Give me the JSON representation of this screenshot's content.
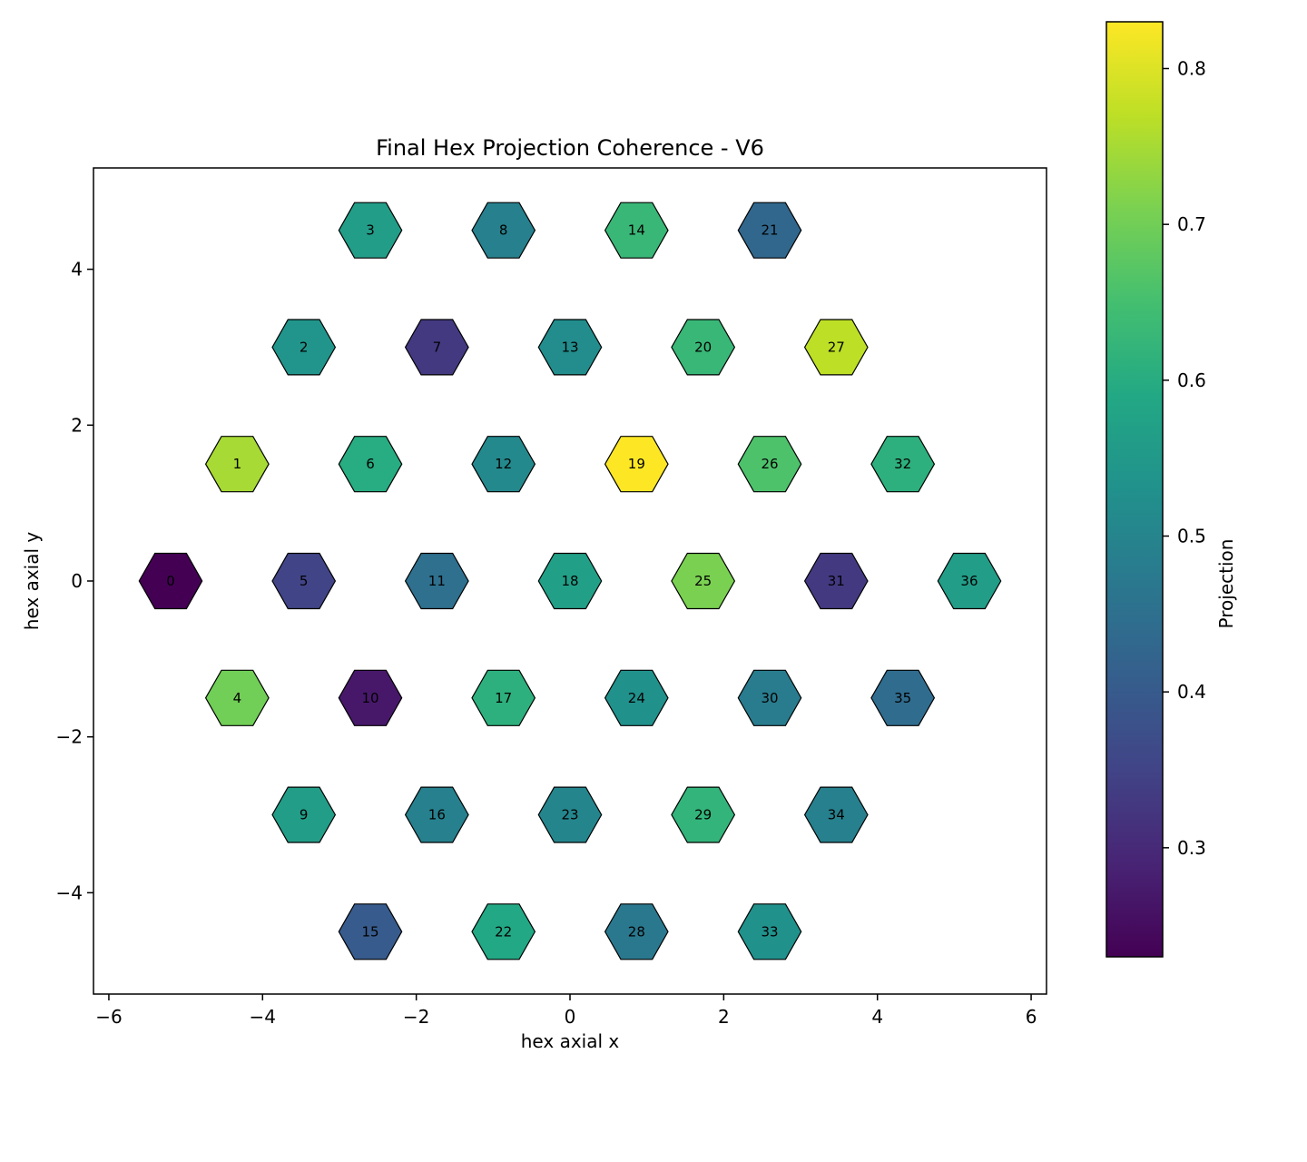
{
  "chart_data": {
    "type": "hexbin",
    "title": "Final Hex Projection Coherence - V6",
    "xlabel": "hex axial x",
    "ylabel": "hex axial y",
    "xlim": [
      -6.2,
      6.2
    ],
    "ylim": [
      -5.3,
      5.3
    ],
    "xticks": [
      -6,
      -4,
      -2,
      0,
      2,
      4,
      6
    ],
    "yticks": [
      -4,
      -2,
      0,
      2,
      4
    ],
    "grid": false,
    "colorbar": {
      "label": "Projection",
      "colormap": "viridis",
      "range": [
        0.23,
        0.83
      ],
      "ticks": [
        0.3,
        0.4,
        0.5,
        0.6,
        0.7,
        0.8
      ]
    },
    "cells": [
      {
        "id": "0",
        "x": -5.196,
        "y": 0.0,
        "value": 0.23
      },
      {
        "id": "1",
        "x": -4.33,
        "y": 1.5,
        "value": 0.75
      },
      {
        "id": "2",
        "x": -3.464,
        "y": 3.0,
        "value": 0.54
      },
      {
        "id": "3",
        "x": -2.598,
        "y": 4.5,
        "value": 0.56
      },
      {
        "id": "4",
        "x": -4.33,
        "y": -1.5,
        "value": 0.7
      },
      {
        "id": "5",
        "x": -3.464,
        "y": 0.0,
        "value": 0.35
      },
      {
        "id": "6",
        "x": -2.598,
        "y": 1.5,
        "value": 0.6
      },
      {
        "id": "7",
        "x": -1.732,
        "y": 3.0,
        "value": 0.33
      },
      {
        "id": "8",
        "x": -0.866,
        "y": 4.5,
        "value": 0.49
      },
      {
        "id": "9",
        "x": -3.464,
        "y": -3.0,
        "value": 0.56
      },
      {
        "id": "10",
        "x": -2.598,
        "y": -1.5,
        "value": 0.27
      },
      {
        "id": "11",
        "x": -1.732,
        "y": 0.0,
        "value": 0.45
      },
      {
        "id": "12",
        "x": -0.866,
        "y": 1.5,
        "value": 0.51
      },
      {
        "id": "13",
        "x": 0.0,
        "y": 3.0,
        "value": 0.52
      },
      {
        "id": "14",
        "x": 0.866,
        "y": 4.5,
        "value": 0.63
      },
      {
        "id": "15",
        "x": -2.598,
        "y": -4.5,
        "value": 0.4
      },
      {
        "id": "16",
        "x": -1.732,
        "y": -3.0,
        "value": 0.49
      },
      {
        "id": "17",
        "x": -0.866,
        "y": -1.5,
        "value": 0.61
      },
      {
        "id": "18",
        "x": 0.0,
        "y": 0.0,
        "value": 0.57
      },
      {
        "id": "19",
        "x": 0.866,
        "y": 1.5,
        "value": 0.83
      },
      {
        "id": "20",
        "x": 1.732,
        "y": 3.0,
        "value": 0.63
      },
      {
        "id": "21",
        "x": 2.598,
        "y": 4.5,
        "value": 0.43
      },
      {
        "id": "22",
        "x": -0.866,
        "y": -4.5,
        "value": 0.59
      },
      {
        "id": "23",
        "x": 0.0,
        "y": -3.0,
        "value": 0.5
      },
      {
        "id": "24",
        "x": 0.866,
        "y": -1.5,
        "value": 0.53
      },
      {
        "id": "25",
        "x": 1.732,
        "y": 0.0,
        "value": 0.71
      },
      {
        "id": "26",
        "x": 2.598,
        "y": 1.5,
        "value": 0.66
      },
      {
        "id": "27",
        "x": 3.464,
        "y": 3.0,
        "value": 0.77
      },
      {
        "id": "28",
        "x": 0.866,
        "y": -4.5,
        "value": 0.47
      },
      {
        "id": "29",
        "x": 1.732,
        "y": -3.0,
        "value": 0.62
      },
      {
        "id": "30",
        "x": 2.598,
        "y": -1.5,
        "value": 0.48
      },
      {
        "id": "31",
        "x": 3.464,
        "y": 0.0,
        "value": 0.33
      },
      {
        "id": "32",
        "x": 4.33,
        "y": 1.5,
        "value": 0.61
      },
      {
        "id": "33",
        "x": 2.598,
        "y": -4.5,
        "value": 0.53
      },
      {
        "id": "34",
        "x": 3.464,
        "y": -3.0,
        "value": 0.49
      },
      {
        "id": "35",
        "x": 4.33,
        "y": -1.5,
        "value": 0.44
      },
      {
        "id": "36",
        "x": 5.196,
        "y": 0.0,
        "value": 0.56
      }
    ]
  }
}
